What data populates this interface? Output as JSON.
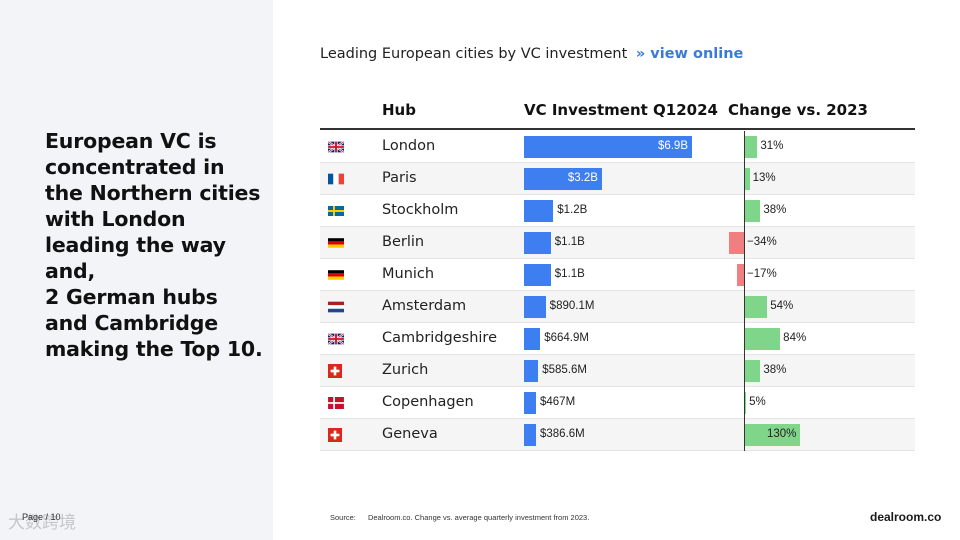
{
  "headline": "European VC is concentrated in the Northern cities with London leading the way and,\n2 German hubs and Cambridge making the Top 10.",
  "page_number": "Page / 10",
  "watermark": "大数跨境",
  "chart_title": "Leading European cities by VC investment",
  "chart_link": "»  view online",
  "source_label": "Source:",
  "source_text": "Dealroom.co. Change vs. average quarterly investment from 2023.",
  "logo": "dealroom.co",
  "colors": {
    "vc_bar": "#3d7ff0",
    "positive": "#7fd58a",
    "negative": "#f08080"
  },
  "chart_data": {
    "type": "table",
    "title": "Leading European cities by VC investment",
    "columns": [
      "Hub",
      "VC Investment Q12024",
      "Change vs. 2023"
    ],
    "rows": [
      {
        "flag": "uk-flag-icon",
        "hub": "London",
        "vc_value": 6.9,
        "vc_label": "$6.9B",
        "change": 31,
        "change_label": "31%"
      },
      {
        "flag": "france-flag-icon",
        "hub": "Paris",
        "vc_value": 3.2,
        "vc_label": "$3.2B",
        "change": 13,
        "change_label": "13%"
      },
      {
        "flag": "sweden-flag-icon",
        "hub": "Stockholm",
        "vc_value": 1.2,
        "vc_label": "$1.2B",
        "change": 38,
        "change_label": "38%"
      },
      {
        "flag": "germany-flag-icon",
        "hub": "Berlin",
        "vc_value": 1.1,
        "vc_label": "$1.1B",
        "change": -34,
        "change_label": "−34%"
      },
      {
        "flag": "germany-flag-icon",
        "hub": "Munich",
        "vc_value": 1.1,
        "vc_label": "$1.1B",
        "change": -17,
        "change_label": "−17%"
      },
      {
        "flag": "netherlands-flag-icon",
        "hub": "Amsterdam",
        "vc_value": 0.8901,
        "vc_label": "$890.1M",
        "change": 54,
        "change_label": "54%"
      },
      {
        "flag": "uk-flag-icon",
        "hub": "Cambridgeshire",
        "vc_value": 0.6649,
        "vc_label": "$664.9M",
        "change": 84,
        "change_label": "84%"
      },
      {
        "flag": "switzerland-flag-icon",
        "hub": "Zurich",
        "vc_value": 0.5856,
        "vc_label": "$585.6M",
        "change": 38,
        "change_label": "38%"
      },
      {
        "flag": "denmark-flag-icon",
        "hub": "Copenhagen",
        "vc_value": 0.467,
        "vc_label": "$467M",
        "change": 5,
        "change_label": "5%"
      },
      {
        "flag": "switzerland-flag-icon",
        "hub": "Geneva",
        "vc_value": 0.3866,
        "vc_label": "$386.6M",
        "change": 130,
        "change_label": "130%"
      }
    ]
  }
}
